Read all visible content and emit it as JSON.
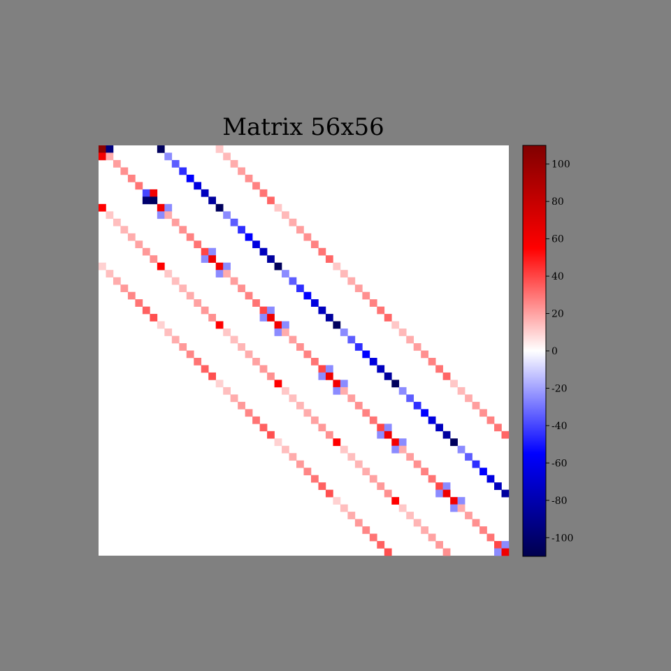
{
  "chart_data": {
    "type": "heatmap",
    "title": "Matrix 56x56",
    "rows": 56,
    "cols": 56,
    "colormap": "seismic",
    "vmin": -110,
    "vmax": 110,
    "colorbar": {
      "placement": "right",
      "ticks": [
        100,
        80,
        60,
        40,
        20,
        0,
        -20,
        -40,
        -60,
        -80,
        -100
      ],
      "tick_labels": [
        "100",
        "80",
        "60",
        "40",
        "20",
        "0",
        "-20",
        "-40",
        "-60",
        "-80",
        "-100"
      ]
    },
    "background_color": "#808080",
    "structure": "banded sparse matrix; all other entries 0",
    "diagonals": [
      {
        "offset": 0,
        "approx_values": "+15..+105 (peaks ~+60 at block starts, ~+105 at (0,0))"
      },
      {
        "offset": 8,
        "approx_values": "-10..-110 (block starts -110)"
      },
      {
        "offset": 16,
        "approx_values": "+10..+40"
      },
      {
        "offset": -8,
        "approx_values": "+10..+60"
      },
      {
        "offset": -16,
        "approx_values": "+10..+40"
      },
      {
        "offset": 1,
        "approx_values": "small, ~-25 near block boundaries"
      },
      {
        "offset": -1,
        "approx_values": "small, ~-25 near block boundaries"
      }
    ]
  }
}
